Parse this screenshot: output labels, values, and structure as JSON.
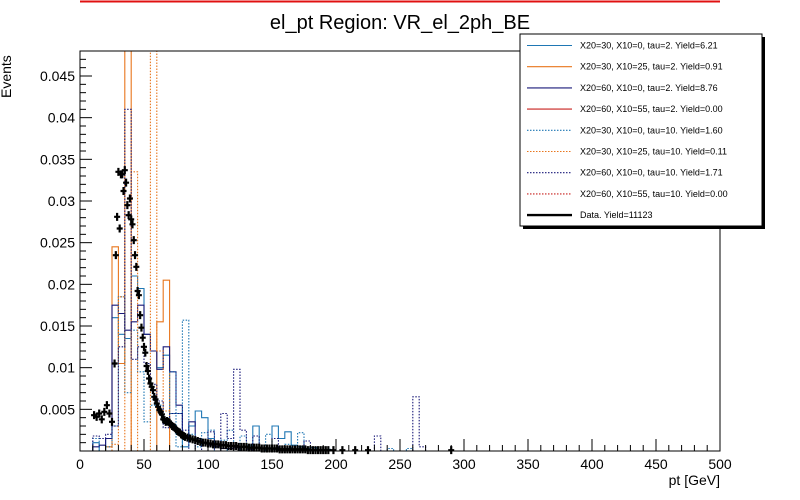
{
  "chart_data": {
    "type": "histogram",
    "title": "el_pt Region: VR_el_2ph_BE",
    "xlabel": "pt [GeV]",
    "ylabel": "Events",
    "xlim": [
      0,
      500
    ],
    "ylim": [
      0,
      0.048
    ],
    "bin_width": 5,
    "x_ticks": [
      "0",
      "50",
      "100",
      "150",
      "200",
      "250",
      "300",
      "350",
      "400",
      "450",
      "500"
    ],
    "y_ticks": [
      "0.005",
      "0.01",
      "0.015",
      "0.02",
      "0.025",
      "0.03",
      "0.035",
      "0.04",
      "0.045"
    ],
    "legend_position": "top-right",
    "series": [
      {
        "name": "X20=30, X10=0, tau=2. Yield=6.21",
        "color": "#1f77b4",
        "style": "solid",
        "key": "s1",
        "bins": [
          [
            10,
            0.001
          ],
          [
            20,
            0.0015
          ],
          [
            25,
            0.016
          ],
          [
            30,
            0.014
          ],
          [
            35,
            0.0135
          ],
          [
            40,
            0.021
          ],
          [
            45,
            0.0195
          ],
          [
            50,
            0.014
          ],
          [
            55,
            0.012
          ],
          [
            60,
            0.01
          ],
          [
            65,
            0.0115
          ],
          [
            70,
            0.0045
          ],
          [
            75,
            0.0045
          ],
          [
            80,
            0.0005
          ],
          [
            85,
            0.003
          ],
          [
            90,
            0.0048
          ],
          [
            95,
            0.004
          ],
          [
            100,
            0.0015
          ],
          [
            105,
            0.0005
          ],
          [
            110,
            0.0003
          ],
          [
            130,
            0.0005
          ],
          [
            135,
            0.003
          ],
          [
            140,
            0.0003
          ],
          [
            150,
            0.003
          ],
          [
            155,
            0.0015
          ],
          [
            160,
            0.0023
          ],
          [
            165,
            0.0007
          ],
          [
            170,
            0.0005
          ],
          [
            175,
            0.0003
          ]
        ]
      },
      {
        "name": "X20=30, X10=25, tau=2. Yield=0.91",
        "color": "#e8761d",
        "style": "solid",
        "key": "s2",
        "bins": [
          [
            20,
            0.0005
          ],
          [
            25,
            0.0245
          ],
          [
            30,
            0.0105
          ],
          [
            35,
            0.048
          ],
          [
            40,
            0.0
          ],
          [
            45,
            0.0
          ],
          [
            50,
            0.0
          ],
          [
            55,
            0.0
          ],
          [
            60,
            0.0155
          ],
          [
            65,
            0.0205
          ],
          [
            70,
            0.0
          ]
        ]
      },
      {
        "name": "X20=60, X10=0, tau=2. Yield=8.76",
        "color": "#1a1a7a",
        "style": "solid",
        "key": "s3",
        "bins": [
          [
            10,
            0.0005
          ],
          [
            15,
            0.0007
          ],
          [
            20,
            0.0015
          ],
          [
            25,
            0.0175
          ],
          [
            30,
            0.0165
          ],
          [
            35,
            0.0145
          ],
          [
            40,
            0.0155
          ],
          [
            45,
            0.0175
          ],
          [
            50,
            0.014
          ],
          [
            55,
            0.012
          ],
          [
            60,
            0.0098
          ],
          [
            65,
            0.0125
          ],
          [
            70,
            0.0095
          ],
          [
            75,
            0.0055
          ],
          [
            80,
            0.0015
          ],
          [
            85,
            0.0035
          ],
          [
            90,
            0.0015
          ],
          [
            95,
            0.001
          ],
          [
            100,
            0.0007
          ],
          [
            105,
            0.0005
          ],
          [
            110,
            0.0003
          ],
          [
            115,
            0.0003
          ],
          [
            120,
            0.0004
          ],
          [
            130,
            0.0002
          ],
          [
            150,
            0.0002
          ],
          [
            160,
            0.0003
          ],
          [
            170,
            0.0002
          ]
        ]
      },
      {
        "name": "X20=60, X10=55, tau=2. Yield=0.00",
        "color": "#c8201e",
        "style": "solid",
        "key": "s4",
        "bins": []
      },
      {
        "name": "X20=30, X10=0, tau=10. Yield=1.60",
        "color": "#1f77b4",
        "style": "dotted",
        "key": "s5",
        "bins": [
          [
            10,
            0.0015
          ],
          [
            20,
            0.0005
          ],
          [
            25,
            0.003
          ],
          [
            30,
            0.0185
          ],
          [
            35,
            0.007
          ],
          [
            40,
            0.0145
          ],
          [
            45,
            0.0095
          ],
          [
            50,
            0.0035
          ],
          [
            55,
            0.0055
          ],
          [
            60,
            0.0055
          ],
          [
            65,
            0.0035
          ],
          [
            70,
            0.0095
          ],
          [
            75,
            0.0005
          ],
          [
            80,
            0.0157
          ],
          [
            85,
            0.002
          ],
          [
            90,
            0.0005
          ],
          [
            95,
            0.0022
          ],
          [
            100,
            0.0025
          ],
          [
            110,
            0.0013
          ],
          [
            115,
            0.0025
          ],
          [
            125,
            0.0018
          ],
          [
            130,
            0.0007
          ],
          [
            145,
            0.002
          ],
          [
            155,
            0.0003
          ],
          [
            160,
            0.0008
          ],
          [
            170,
            0.0022
          ],
          [
            175,
            0.0002
          ],
          [
            180,
            0.0004
          ],
          [
            195,
            0.0002
          ],
          [
            240,
            0.0003
          ],
          [
            255,
            0.0003
          ]
        ]
      },
      {
        "name": "X20=30, X10=25, tau=10. Yield=0.11",
        "color": "#e8761d",
        "style": "dotted",
        "key": "s6",
        "bins": [
          [
            25,
            0.0008
          ],
          [
            30,
            0.0185
          ],
          [
            35,
            0.0
          ],
          [
            40,
            0.0335
          ],
          [
            45,
            0.0
          ],
          [
            50,
            0.0
          ],
          [
            55,
            0.048
          ],
          [
            60,
            0.012
          ],
          [
            65,
            0.0048
          ]
        ]
      },
      {
        "name": "X20=60, X10=0, tau=10. Yield=1.71",
        "color": "#1a1a7a",
        "style": "dotted",
        "key": "s7",
        "bins": [
          [
            10,
            0.0018
          ],
          [
            15,
            0.0015
          ],
          [
            20,
            0.002
          ],
          [
            25,
            0.003
          ],
          [
            30,
            0.0125
          ],
          [
            35,
            0.041
          ],
          [
            40,
            0.011
          ],
          [
            45,
            0.0125
          ],
          [
            50,
            0.0105
          ],
          [
            55,
            0.008
          ],
          [
            60,
            0.006
          ],
          [
            65,
            0.0028
          ],
          [
            70,
            0.0045
          ],
          [
            75,
            0.0045
          ],
          [
            80,
            0.0025
          ],
          [
            90,
            0.0015
          ],
          [
            100,
            0.0023
          ],
          [
            110,
            0.0045
          ],
          [
            115,
            0.0015
          ],
          [
            120,
            0.0098
          ],
          [
            125,
            0.0025
          ],
          [
            135,
            0.0018
          ],
          [
            150,
            0.0015
          ],
          [
            175,
            0.0012
          ],
          [
            230,
            0.0018
          ],
          [
            260,
            0.0065
          ],
          [
            265,
            0.0005
          ]
        ]
      },
      {
        "name": "X20=60, X10=55, tau=10. Yield=0.00",
        "color": "#c8201e",
        "style": "dotted",
        "key": "s8",
        "bins": []
      }
    ],
    "data_series": {
      "name": "Data. Yield=11123",
      "color": "#000000",
      "points": [
        [
          11,
          0.0043
        ],
        [
          13,
          0.0041
        ],
        [
          15,
          0.0045
        ],
        [
          17,
          0.0038
        ],
        [
          19,
          0.0047
        ],
        [
          21,
          0.0055
        ],
        [
          23,
          0.0045
        ],
        [
          25,
          0.0035
        ],
        [
          27,
          0.0105
        ],
        [
          28,
          0.0235
        ],
        [
          29,
          0.0281
        ],
        [
          30,
          0.0335
        ],
        [
          31,
          0.0267
        ],
        [
          32,
          0.0332
        ],
        [
          33,
          0.0332
        ],
        [
          34,
          0.0312
        ],
        [
          35,
          0.0337
        ],
        [
          36,
          0.0322
        ],
        [
          37,
          0.0295
        ],
        [
          38,
          0.0283
        ],
        [
          39,
          0.0303
        ],
        [
          40,
          0.0278
        ],
        [
          41,
          0.0272
        ],
        [
          42,
          0.0253
        ],
        [
          43,
          0.0235
        ],
        [
          44,
          0.0221
        ],
        [
          45,
          0.0192
        ],
        [
          46,
          0.0187
        ],
        [
          47,
          0.0163
        ],
        [
          48,
          0.0148
        ],
        [
          49,
          0.0136
        ],
        [
          50,
          0.0125
        ],
        [
          51,
          0.0118
        ],
        [
          52,
          0.0102
        ],
        [
          53,
          0.0096
        ],
        [
          54,
          0.0087
        ],
        [
          55,
          0.0081
        ],
        [
          56,
          0.0077
        ],
        [
          57,
          0.0073
        ],
        [
          58,
          0.0065
        ],
        [
          59,
          0.0062
        ],
        [
          60,
          0.0057
        ],
        [
          61,
          0.0053
        ],
        [
          62,
          0.0049
        ],
        [
          63,
          0.0047
        ],
        [
          64,
          0.0044
        ],
        [
          65,
          0.0038
        ],
        [
          66,
          0.0037
        ],
        [
          67,
          0.0035
        ],
        [
          68,
          0.0036
        ],
        [
          69,
          0.0035
        ],
        [
          70,
          0.0034
        ],
        [
          71,
          0.0032
        ],
        [
          72,
          0.003
        ],
        [
          73,
          0.0029
        ],
        [
          74,
          0.0028
        ],
        [
          75,
          0.0026
        ],
        [
          76,
          0.0024
        ],
        [
          77,
          0.0023
        ],
        [
          78,
          0.0022
        ],
        [
          79,
          0.002
        ],
        [
          80,
          0.0019
        ],
        [
          81,
          0.0018
        ],
        [
          82,
          0.0017
        ],
        [
          84,
          0.0016
        ],
        [
          86,
          0.0015
        ],
        [
          88,
          0.0014
        ],
        [
          90,
          0.0013
        ],
        [
          92,
          0.0012
        ],
        [
          94,
          0.0011
        ],
        [
          96,
          0.001
        ],
        [
          98,
          0.001
        ],
        [
          100,
          0.0009
        ],
        [
          102,
          0.0009
        ],
        [
          104,
          0.0008
        ],
        [
          106,
          0.0008
        ],
        [
          108,
          0.0008
        ],
        [
          110,
          0.0007
        ],
        [
          112,
          0.0007
        ],
        [
          114,
          0.0007
        ],
        [
          116,
          0.0006
        ],
        [
          118,
          0.0006
        ],
        [
          120,
          0.0006
        ],
        [
          122,
          0.0006
        ],
        [
          124,
          0.0005
        ],
        [
          126,
          0.0005
        ],
        [
          128,
          0.0005
        ],
        [
          130,
          0.0005
        ],
        [
          132,
          0.0004
        ],
        [
          134,
          0.0004
        ],
        [
          136,
          0.0004
        ],
        [
          138,
          0.0004
        ],
        [
          140,
          0.0004
        ],
        [
          142,
          0.0003
        ],
        [
          144,
          0.0003
        ],
        [
          146,
          0.0003
        ],
        [
          148,
          0.0003
        ],
        [
          150,
          0.0003
        ],
        [
          152,
          0.0003
        ],
        [
          154,
          0.0003
        ],
        [
          156,
          0.0002
        ],
        [
          158,
          0.0002
        ],
        [
          160,
          0.0002
        ],
        [
          162,
          0.0002
        ],
        [
          164,
          0.0002
        ],
        [
          166,
          0.0002
        ],
        [
          168,
          0.0002
        ],
        [
          170,
          0.0002
        ],
        [
          172,
          0.0002
        ],
        [
          174,
          0.0002
        ],
        [
          176,
          0.0002
        ],
        [
          178,
          0.0001
        ],
        [
          180,
          0.0001
        ],
        [
          182,
          0.0001
        ],
        [
          184,
          0.0001
        ],
        [
          186,
          0.0001
        ],
        [
          188,
          0.0001
        ],
        [
          190,
          0.0001
        ],
        [
          192,
          0.0001
        ],
        [
          194,
          0.0001
        ],
        [
          198,
          0.0001
        ],
        [
          205,
          0.0001
        ],
        [
          215,
          0.0001
        ],
        [
          225,
          0.0001
        ],
        [
          290,
          0.0001
        ]
      ]
    }
  }
}
